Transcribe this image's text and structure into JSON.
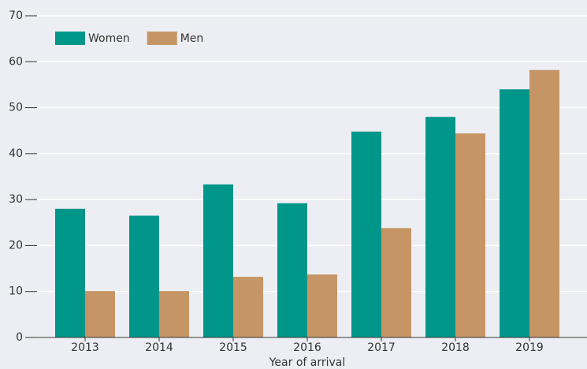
{
  "chart_data": {
    "type": "bar",
    "x_label": "Year of arrival",
    "categories": [
      "2013",
      "2014",
      "2015",
      "2016",
      "2017",
      "2018",
      "2019"
    ],
    "series": [
      {
        "name": "Women",
        "color": "#00968a",
        "values": [
          28,
          26.5,
          33.3,
          29.2,
          44.8,
          48,
          54
        ]
      },
      {
        "name": "Men",
        "color": "#c69565",
        "values": [
          10.1,
          10.1,
          13.2,
          13.7,
          23.8,
          44.4,
          58.2
        ]
      }
    ],
    "ylim": [
      0,
      70
    ],
    "yticks": [
      0,
      10,
      20,
      30,
      40,
      50,
      60,
      70
    ],
    "grid": true,
    "legend": "top-left"
  }
}
